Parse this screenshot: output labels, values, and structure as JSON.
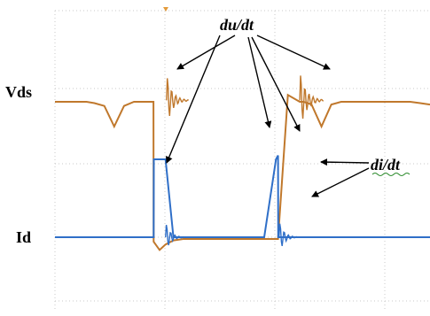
{
  "chart_data": {
    "type": "line",
    "title": "",
    "xlabel": "",
    "ylabel": "",
    "grid": true,
    "channel_labels": [
      "Vds",
      "Id"
    ],
    "annotations": [
      {
        "text": "du/dt",
        "target": "voltage slopes"
      },
      {
        "text": "di/dt",
        "target": "current rise"
      }
    ],
    "series": [
      {
        "name": "Vds",
        "color": "#c0782c",
        "x": [
          0,
          1.6,
          2.0,
          2.5,
          3.0,
          3.5,
          4.0,
          4.5,
          4.99,
          5.0,
          5.3,
          5.6,
          6.0,
          6.5,
          7.0,
          8.0,
          9.0,
          10.0,
          10.5,
          11.0,
          11.3,
          11.8,
          12.4,
          12.6,
          13.0,
          13.5,
          14.0,
          14.5,
          16.0,
          17.0,
          18.0,
          18.5,
          19.0
        ],
        "y": [
          100,
          100,
          99,
          97,
          82,
          97,
          100,
          100,
          100,
          -2,
          -8,
          -4,
          -1,
          0,
          0,
          0,
          0,
          0,
          0,
          0,
          0,
          105,
          100,
          100,
          98,
          82,
          98,
          100,
          100,
          100,
          100,
          99,
          98
        ]
      },
      {
        "name": "Id",
        "color": "#2f6fc8",
        "x": [
          0,
          4.0,
          4.5,
          5.0,
          5.01,
          5.6,
          6.0,
          9.0,
          10.5,
          10.6,
          11.2,
          11.3,
          11.31,
          12.0,
          13.0,
          16.0,
          19.0
        ],
        "y": [
          0,
          0,
          0,
          0,
          100,
          100,
          0,
          0,
          0,
          0,
          100,
          105,
          0,
          0,
          0,
          0,
          0
        ]
      }
    ]
  }
}
